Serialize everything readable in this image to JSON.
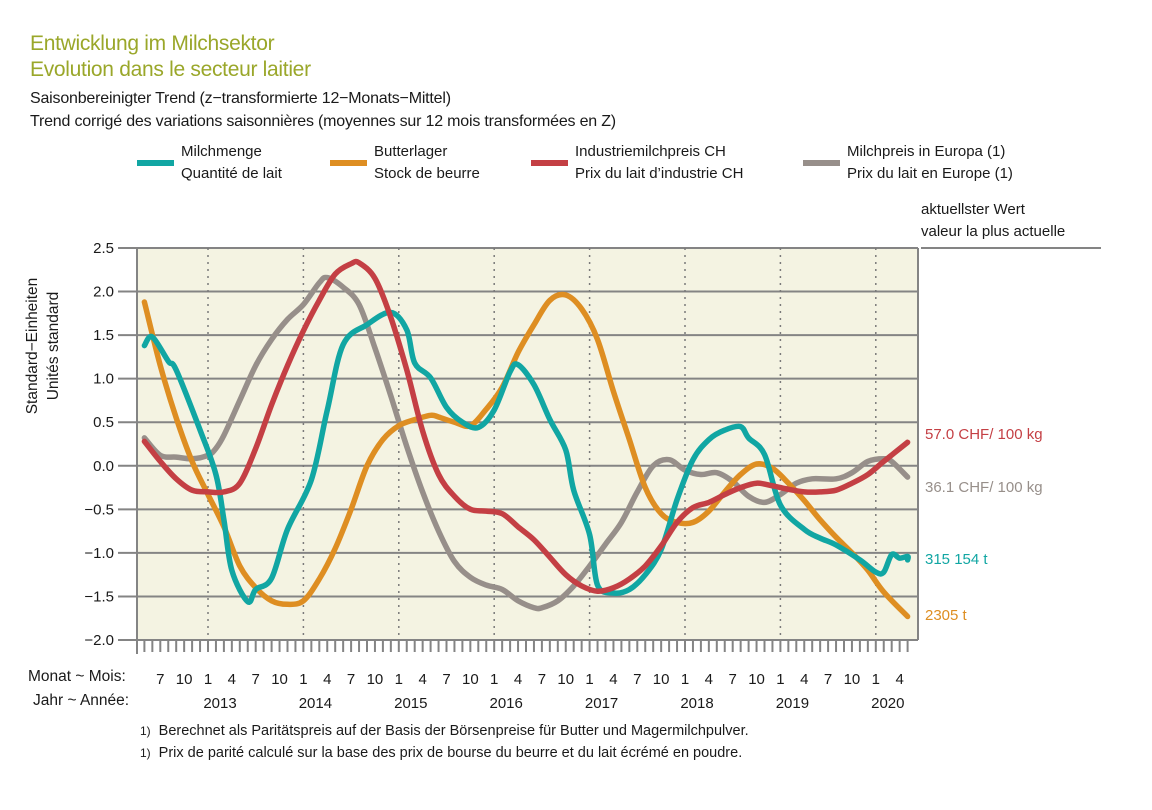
{
  "header": {
    "title_de": "Entwicklung im Milchsektor",
    "title_fr": "Evolution dans le secteur laitier",
    "subtitle_de": "Saisonbereinigter Trend (z−transformierte 12−Monats−Mittel)",
    "subtitle_fr": "Trend corrigé des variations saisonnières (moyennes sur 12 mois transformées en Z)"
  },
  "legend": [
    {
      "label_de": "Milchmenge",
      "label_fr": "Quantité de lait",
      "color": "#11a6a3"
    },
    {
      "label_de": "Butterlager",
      "label_fr": "Stock de beurre",
      "color": "#de8e22"
    },
    {
      "label_de": "Industriemilchpreis CH",
      "label_fr": "Prix du lait d’industrie CH",
      "color": "#c43f44"
    },
    {
      "label_de": "Milchpreis in Europa (1)",
      "label_fr": "Prix du lait en Europe (1)",
      "color": "#978f8a"
    }
  ],
  "latest": {
    "heading_de": "aktuellster Wert",
    "heading_fr": "valeur la plus actuelle",
    "values": [
      {
        "series": "Industriemilchpreis CH",
        "text": "57.0 CHF/ 100 kg",
        "color": "#c43f44"
      },
      {
        "series": "Milchpreis in Europa",
        "text": "36.1 CHF/ 100 kg",
        "color": "#978f8a"
      },
      {
        "series": "Milchmenge",
        "text": "315 154 t",
        "color": "#11a6a3"
      },
      {
        "series": "Butterlager",
        "text": "2305 t",
        "color": "#de8e22"
      }
    ]
  },
  "axis_labels": {
    "y_de": "Standard−Einheiten",
    "y_fr": "Unités standard",
    "month_row": "Monat ~ Mois:",
    "year_row": "Jahr ~ Année:"
  },
  "footnotes": [
    {
      "mark": "1)",
      "text": "Berechnet als Paritätspreis auf der Basis der Börsenpreise für Butter und Magermilchpulver."
    },
    {
      "mark": "1)",
      "text": "Prix de parité calculé sur la base des prix de bourse du beurre et du lait écrémé en poudre."
    }
  ],
  "chart_data": {
    "type": "line",
    "title": "Entwicklung im Milchsektor / Evolution dans le secteur laitier",
    "subtitle": "Saisonbereinigter Trend (z-transformierte 12-Monats-Mittel)",
    "xlabel": "Monat ~ Mois / Jahr ~ Année",
    "ylabel": "Standard-Einheiten / Unités standard",
    "ylim": [
      -2.0,
      2.5
    ],
    "yticks": [
      2.5,
      2.0,
      1.5,
      1.0,
      0.5,
      0.0,
      -0.5,
      -1.0,
      -1.5,
      -2.0
    ],
    "ytick_labels": [
      "2.5",
      "2.0",
      "1.5",
      "1.0",
      "0.5",
      "0.0",
      "−0.5",
      "−1.0",
      "−1.5",
      "−2.0"
    ],
    "xlim": [
      "2012-04",
      "2020-05"
    ],
    "x_month_ticks": [
      {
        "date": "2012-07",
        "label": "7"
      },
      {
        "date": "2012-10",
        "label": "10"
      },
      {
        "date": "2013-01",
        "label": "1"
      },
      {
        "date": "2013-04",
        "label": "4"
      },
      {
        "date": "2013-07",
        "label": "7"
      },
      {
        "date": "2013-10",
        "label": "10"
      },
      {
        "date": "2014-01",
        "label": "1"
      },
      {
        "date": "2014-04",
        "label": "4"
      },
      {
        "date": "2014-07",
        "label": "7"
      },
      {
        "date": "2014-10",
        "label": "10"
      },
      {
        "date": "2015-01",
        "label": "1"
      },
      {
        "date": "2015-04",
        "label": "4"
      },
      {
        "date": "2015-07",
        "label": "7"
      },
      {
        "date": "2015-10",
        "label": "10"
      },
      {
        "date": "2016-01",
        "label": "1"
      },
      {
        "date": "2016-04",
        "label": "4"
      },
      {
        "date": "2016-07",
        "label": "7"
      },
      {
        "date": "2016-10",
        "label": "10"
      },
      {
        "date": "2017-01",
        "label": "1"
      },
      {
        "date": "2017-04",
        "label": "4"
      },
      {
        "date": "2017-07",
        "label": "7"
      },
      {
        "date": "2017-10",
        "label": "10"
      },
      {
        "date": "2018-01",
        "label": "1"
      },
      {
        "date": "2018-04",
        "label": "4"
      },
      {
        "date": "2018-07",
        "label": "7"
      },
      {
        "date": "2018-10",
        "label": "10"
      },
      {
        "date": "2019-01",
        "label": "1"
      },
      {
        "date": "2019-04",
        "label": "4"
      },
      {
        "date": "2019-07",
        "label": "7"
      },
      {
        "date": "2019-10",
        "label": "10"
      },
      {
        "date": "2020-01",
        "label": "1"
      },
      {
        "date": "2020-04",
        "label": "4"
      }
    ],
    "x_year_labels": [
      {
        "date": "2013-01",
        "label": "2013"
      },
      {
        "date": "2014-01",
        "label": "2014"
      },
      {
        "date": "2015-01",
        "label": "2015"
      },
      {
        "date": "2016-01",
        "label": "2016"
      },
      {
        "date": "2017-01",
        "label": "2017"
      },
      {
        "date": "2018-01",
        "label": "2018"
      },
      {
        "date": "2019-01",
        "label": "2019"
      },
      {
        "date": "2020-01",
        "label": "2020"
      }
    ],
    "year_separators": [
      "2013-01",
      "2014-01",
      "2015-01",
      "2016-01",
      "2017-01",
      "2018-01",
      "2019-01",
      "2020-01"
    ],
    "grid": "horizontal solid at y ticks; vertical dotted at year starts",
    "legend_position": "top",
    "series": [
      {
        "name": "Milchmenge / Quantité de lait",
        "color": "#11a6a3",
        "latest_value": "315 154 t",
        "points": [
          [
            "2012-05",
            1.38
          ],
          [
            "2012-06",
            1.48
          ],
          [
            "2012-08",
            1.2
          ],
          [
            "2012-09",
            1.1
          ],
          [
            "2012-12",
            0.41
          ],
          [
            "2013-02",
            -0.1
          ],
          [
            "2013-03",
            -0.62
          ],
          [
            "2013-04",
            -1.2
          ],
          [
            "2013-06",
            -1.56
          ],
          [
            "2013-07",
            -1.42
          ],
          [
            "2013-09",
            -1.29
          ],
          [
            "2013-11",
            -0.73
          ],
          [
            "2014-02",
            -0.16
          ],
          [
            "2014-04",
            0.64
          ],
          [
            "2014-06",
            1.39
          ],
          [
            "2014-09",
            1.62
          ],
          [
            "2014-12",
            1.76
          ],
          [
            "2015-02",
            1.56
          ],
          [
            "2015-03",
            1.18
          ],
          [
            "2015-05",
            1.01
          ],
          [
            "2015-07",
            0.67
          ],
          [
            "2015-09",
            0.5
          ],
          [
            "2015-11",
            0.44
          ],
          [
            "2016-01",
            0.64
          ],
          [
            "2016-03",
            1.08
          ],
          [
            "2016-04",
            1.16
          ],
          [
            "2016-06",
            0.93
          ],
          [
            "2016-08",
            0.53
          ],
          [
            "2016-10",
            0.18
          ],
          [
            "2016-11",
            -0.28
          ],
          [
            "2017-01",
            -0.79
          ],
          [
            "2017-02",
            -1.37
          ],
          [
            "2017-04",
            -1.46
          ],
          [
            "2017-06",
            -1.42
          ],
          [
            "2017-08",
            -1.25
          ],
          [
            "2017-10",
            -0.96
          ],
          [
            "2017-12",
            -0.39
          ],
          [
            "2018-02",
            0.07
          ],
          [
            "2018-04",
            0.3
          ],
          [
            "2018-06",
            0.41
          ],
          [
            "2018-08",
            0.45
          ],
          [
            "2018-09",
            0.32
          ],
          [
            "2018-11",
            0.13
          ],
          [
            "2019-01",
            -0.45
          ],
          [
            "2019-04",
            -0.73
          ],
          [
            "2019-06",
            -0.83
          ],
          [
            "2019-08",
            -0.91
          ],
          [
            "2019-11",
            -1.08
          ],
          [
            "2020-01",
            -1.22
          ],
          [
            "2020-02",
            -1.22
          ],
          [
            "2020-03",
            -1.02
          ],
          [
            "2020-04",
            -1.06
          ],
          [
            "2020-05",
            -1.04
          ],
          [
            "2020-05",
            -1.08
          ]
        ]
      },
      {
        "name": "Butterlager / Stock de beurre",
        "color": "#de8e22",
        "latest_value": "2305 t",
        "points": [
          [
            "2012-05",
            1.88
          ],
          [
            "2012-07",
            1.15
          ],
          [
            "2012-09",
            0.55
          ],
          [
            "2012-11",
            0.05
          ],
          [
            "2013-01",
            -0.33
          ],
          [
            "2013-03",
            -0.7
          ],
          [
            "2013-05",
            -1.15
          ],
          [
            "2013-07",
            -1.4
          ],
          [
            "2013-09",
            -1.55
          ],
          [
            "2013-11",
            -1.59
          ],
          [
            "2014-01",
            -1.55
          ],
          [
            "2014-03",
            -1.3
          ],
          [
            "2014-05",
            -0.95
          ],
          [
            "2014-07",
            -0.5
          ],
          [
            "2014-09",
            0.0
          ],
          [
            "2014-11",
            0.3
          ],
          [
            "2015-01",
            0.46
          ],
          [
            "2015-03",
            0.53
          ],
          [
            "2015-05",
            0.58
          ],
          [
            "2015-06",
            0.56
          ],
          [
            "2015-08",
            0.5
          ],
          [
            "2015-10",
            0.46
          ],
          [
            "2015-12",
            0.65
          ],
          [
            "2016-02",
            0.9
          ],
          [
            "2016-04",
            1.3
          ],
          [
            "2016-06",
            1.62
          ],
          [
            "2016-08",
            1.9
          ],
          [
            "2016-10",
            1.96
          ],
          [
            "2016-12",
            1.8
          ],
          [
            "2017-02",
            1.45
          ],
          [
            "2017-04",
            0.85
          ],
          [
            "2017-06",
            0.3
          ],
          [
            "2017-08",
            -0.25
          ],
          [
            "2017-10",
            -0.55
          ],
          [
            "2017-12",
            -0.65
          ],
          [
            "2018-02",
            -0.65
          ],
          [
            "2018-04",
            -0.52
          ],
          [
            "2018-06",
            -0.3
          ],
          [
            "2018-08",
            -0.1
          ],
          [
            "2018-10",
            0.02
          ],
          [
            "2018-12",
            -0.03
          ],
          [
            "2019-02",
            -0.2
          ],
          [
            "2019-04",
            -0.4
          ],
          [
            "2019-06",
            -0.62
          ],
          [
            "2019-08",
            -0.82
          ],
          [
            "2019-10",
            -1.0
          ],
          [
            "2019-12",
            -1.2
          ],
          [
            "2020-02",
            -1.45
          ],
          [
            "2020-05",
            -1.73
          ]
        ]
      },
      {
        "name": "Industriemilchpreis CH / Prix du lait d’industrie CH",
        "color": "#c43f44",
        "latest_value": "57.0 CHF/ 100 kg",
        "points": [
          [
            "2012-05",
            0.28
          ],
          [
            "2012-07",
            0.05
          ],
          [
            "2012-09",
            -0.15
          ],
          [
            "2012-11",
            -0.28
          ],
          [
            "2013-01",
            -0.3
          ],
          [
            "2013-03",
            -0.3
          ],
          [
            "2013-05",
            -0.2
          ],
          [
            "2013-07",
            0.2
          ],
          [
            "2013-09",
            0.7
          ],
          [
            "2013-11",
            1.15
          ],
          [
            "2014-01",
            1.55
          ],
          [
            "2014-03",
            1.9
          ],
          [
            "2014-05",
            2.2
          ],
          [
            "2014-07",
            2.32
          ],
          [
            "2014-08",
            2.33
          ],
          [
            "2014-10",
            2.15
          ],
          [
            "2014-12",
            1.7
          ],
          [
            "2015-02",
            1.1
          ],
          [
            "2015-04",
            0.4
          ],
          [
            "2015-06",
            -0.1
          ],
          [
            "2015-08",
            -0.35
          ],
          [
            "2015-10",
            -0.5
          ],
          [
            "2015-12",
            -0.52
          ],
          [
            "2016-02",
            -0.55
          ],
          [
            "2016-04",
            -0.7
          ],
          [
            "2016-06",
            -0.85
          ],
          [
            "2016-08",
            -1.05
          ],
          [
            "2016-10",
            -1.25
          ],
          [
            "2016-12",
            -1.38
          ],
          [
            "2017-02",
            -1.44
          ],
          [
            "2017-04",
            -1.4
          ],
          [
            "2017-06",
            -1.3
          ],
          [
            "2017-08",
            -1.15
          ],
          [
            "2017-10",
            -0.92
          ],
          [
            "2017-12",
            -0.65
          ],
          [
            "2018-02",
            -0.48
          ],
          [
            "2018-04",
            -0.42
          ],
          [
            "2018-06",
            -0.33
          ],
          [
            "2018-08",
            -0.25
          ],
          [
            "2018-10",
            -0.2
          ],
          [
            "2018-12",
            -0.23
          ],
          [
            "2019-02",
            -0.27
          ],
          [
            "2019-04",
            -0.3
          ],
          [
            "2019-06",
            -0.3
          ],
          [
            "2019-08",
            -0.28
          ],
          [
            "2019-10",
            -0.2
          ],
          [
            "2019-12",
            -0.1
          ],
          [
            "2020-02",
            0.05
          ],
          [
            "2020-05",
            0.27
          ]
        ]
      },
      {
        "name": "Milchpreis in Europa / Prix du lait en Europe",
        "color": "#978f8a",
        "latest_value": "36.1 CHF/ 100 kg",
        "points": [
          [
            "2012-05",
            0.32
          ],
          [
            "2012-07",
            0.12
          ],
          [
            "2012-09",
            0.1
          ],
          [
            "2012-11",
            0.08
          ],
          [
            "2013-01",
            0.12
          ],
          [
            "2013-02",
            0.2
          ],
          [
            "2013-03",
            0.35
          ],
          [
            "2013-05",
            0.75
          ],
          [
            "2013-07",
            1.15
          ],
          [
            "2013-09",
            1.45
          ],
          [
            "2013-11",
            1.68
          ],
          [
            "2014-01",
            1.85
          ],
          [
            "2014-03",
            2.1
          ],
          [
            "2014-04",
            2.16
          ],
          [
            "2014-06",
            2.05
          ],
          [
            "2014-08",
            1.85
          ],
          [
            "2014-10",
            1.35
          ],
          [
            "2014-12",
            0.8
          ],
          [
            "2015-02",
            0.22
          ],
          [
            "2015-04",
            -0.3
          ],
          [
            "2015-06",
            -0.75
          ],
          [
            "2015-08",
            -1.1
          ],
          [
            "2015-10",
            -1.28
          ],
          [
            "2015-12",
            -1.37
          ],
          [
            "2016-02",
            -1.42
          ],
          [
            "2016-04",
            -1.55
          ],
          [
            "2016-06",
            -1.63
          ],
          [
            "2016-07",
            -1.63
          ],
          [
            "2016-09",
            -1.55
          ],
          [
            "2016-11",
            -1.38
          ],
          [
            "2017-01",
            -1.15
          ],
          [
            "2017-03",
            -0.9
          ],
          [
            "2017-05",
            -0.65
          ],
          [
            "2017-07",
            -0.3
          ],
          [
            "2017-09",
            0.0
          ],
          [
            "2017-11",
            0.07
          ],
          [
            "2018-01",
            -0.05
          ],
          [
            "2018-03",
            -0.1
          ],
          [
            "2018-05",
            -0.08
          ],
          [
            "2018-07",
            -0.18
          ],
          [
            "2018-09",
            -0.35
          ],
          [
            "2018-11",
            -0.42
          ],
          [
            "2019-01",
            -0.33
          ],
          [
            "2019-03",
            -0.2
          ],
          [
            "2019-05",
            -0.15
          ],
          [
            "2019-08",
            -0.15
          ],
          [
            "2019-10",
            -0.08
          ],
          [
            "2019-12",
            0.05
          ],
          [
            "2020-02",
            0.08
          ],
          [
            "2020-03",
            0.05
          ],
          [
            "2020-05",
            -0.13
          ]
        ]
      }
    ]
  }
}
